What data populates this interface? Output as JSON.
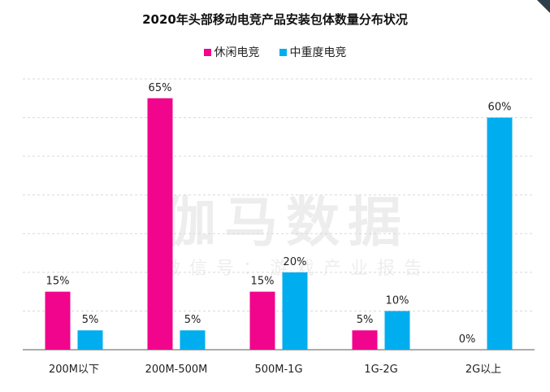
{
  "chart_data": {
    "type": "bar",
    "title": "2020年头部移动电竞产品安装包体数量分布状况",
    "categories": [
      "200M以下",
      "200M-500M",
      "500M-1G",
      "1G-2G",
      "2G以上"
    ],
    "series": [
      {
        "name": "休闲电竞",
        "color": "#f0058c",
        "values": [
          15,
          65,
          15,
          5,
          0
        ],
        "labels": [
          "15%",
          "65%",
          "15%",
          "5%",
          "0%"
        ]
      },
      {
        "name": "中重度电竞",
        "color": "#00adef",
        "values": [
          5,
          5,
          20,
          10,
          60
        ],
        "labels": [
          "5%",
          "5%",
          "20%",
          "10%",
          "60%"
        ]
      }
    ],
    "ylim": [
      0,
      70
    ],
    "grid": true,
    "legend": "top-center",
    "xlabel": "",
    "ylabel": ""
  },
  "watermark": {
    "main": "伽马数据",
    "sub": "微信号：游戏产业报告"
  },
  "colors": {
    "grid": "#d9d9d9",
    "axis": "#595959"
  }
}
